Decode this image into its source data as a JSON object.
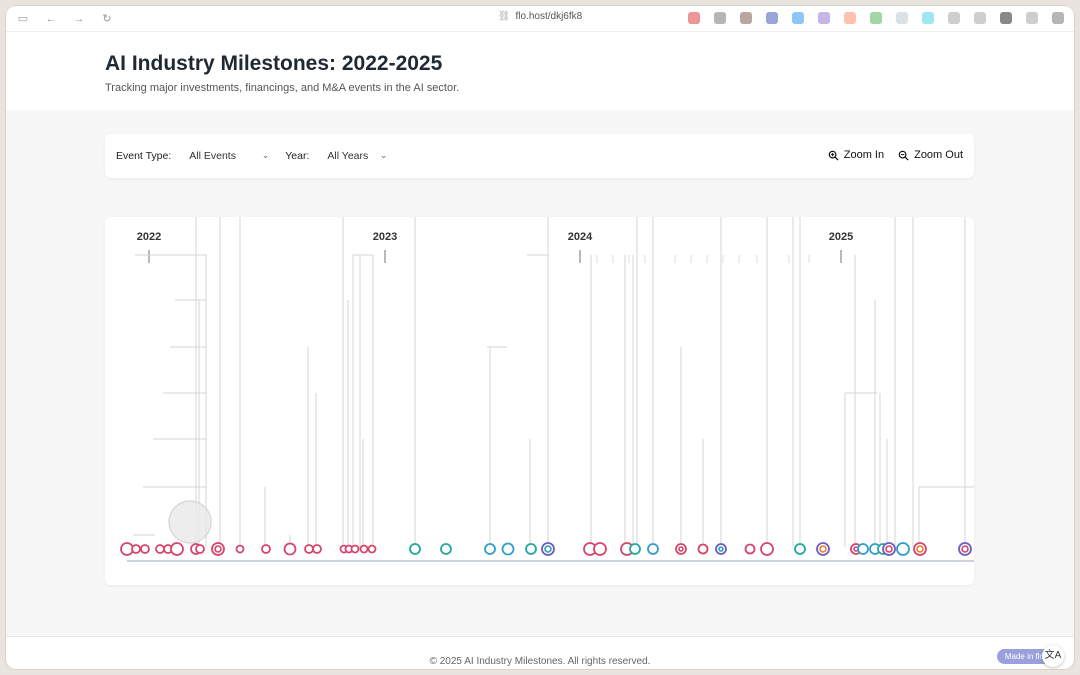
{
  "browser": {
    "url": "flo.host/dkj6fk8",
    "extension_colors": [
      "#e57373",
      "#9e9e9e",
      "#a1887f",
      "#7986cb",
      "#64b5f6",
      "#b39ddb",
      "#ffab91",
      "#81c784",
      "#cfd8dc",
      "#80deea",
      "#bdbdbd",
      "#bdbdbd",
      "#616161",
      "#bdbdbd",
      "#9e9e9e"
    ]
  },
  "header": {
    "title": "AI Industry Milestones: 2022-2025",
    "subtitle": "Tracking major investments, financings, and M&A events in the AI sector."
  },
  "filters": {
    "event_type_label": "Event Type:",
    "event_type_value": "All Events",
    "year_label": "Year:",
    "year_value": "All Years",
    "zoom_in_label": "Zoom In",
    "zoom_out_label": "Zoom Out"
  },
  "timeline": {
    "years": [
      "2022",
      "2023",
      "2024",
      "2025"
    ],
    "colors": {
      "financing": "#d7456b",
      "investment": "#21a8a0",
      "ma": "#2f9fc9",
      "mixed": "#6a5fc1",
      "accent": "#f07b2c"
    }
  },
  "footer": {
    "text": "© 2025 AI Industry Milestones. All rights reserved.",
    "badge": "Made in flo"
  }
}
